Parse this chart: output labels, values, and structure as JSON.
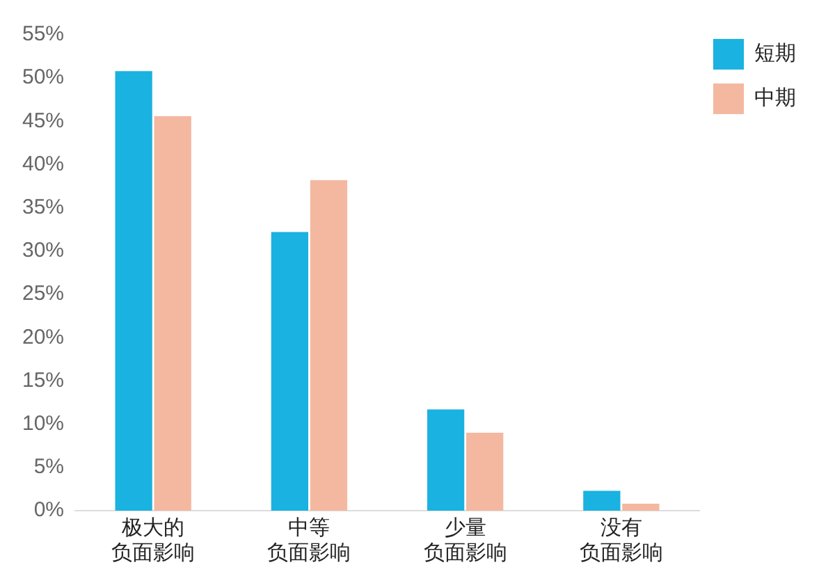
{
  "chart_data": {
    "type": "bar",
    "categories": [
      "极大的负面影响",
      "中等负面影响",
      "少量负面影响",
      "没有负面影响"
    ],
    "series": [
      {
        "name": "短期",
        "color": "#1ab2e0",
        "values": [
          50.8,
          32.2,
          11.7,
          2.3
        ]
      },
      {
        "name": "中期",
        "color": "#f4b8a0",
        "values": [
          45.6,
          38.2,
          9.0,
          0.8
        ]
      }
    ],
    "ylim": [
      0,
      55
    ],
    "yticks": [
      {
        "value": 0,
        "label": "0%"
      },
      {
        "value": 5,
        "label": "5%"
      },
      {
        "value": 10,
        "label": "10%"
      },
      {
        "value": 15,
        "label": "15%"
      },
      {
        "value": 20,
        "label": "20%"
      },
      {
        "value": 25,
        "label": "25%"
      },
      {
        "value": 30,
        "label": "30%"
      },
      {
        "value": 35,
        "label": "35%"
      },
      {
        "value": 40,
        "label": "40%"
      },
      {
        "value": 45,
        "label": "45%"
      },
      {
        "value": 50,
        "label": "50%"
      },
      {
        "value": 55,
        "label": "55%"
      }
    ],
    "grid": false,
    "legend": "top right"
  }
}
